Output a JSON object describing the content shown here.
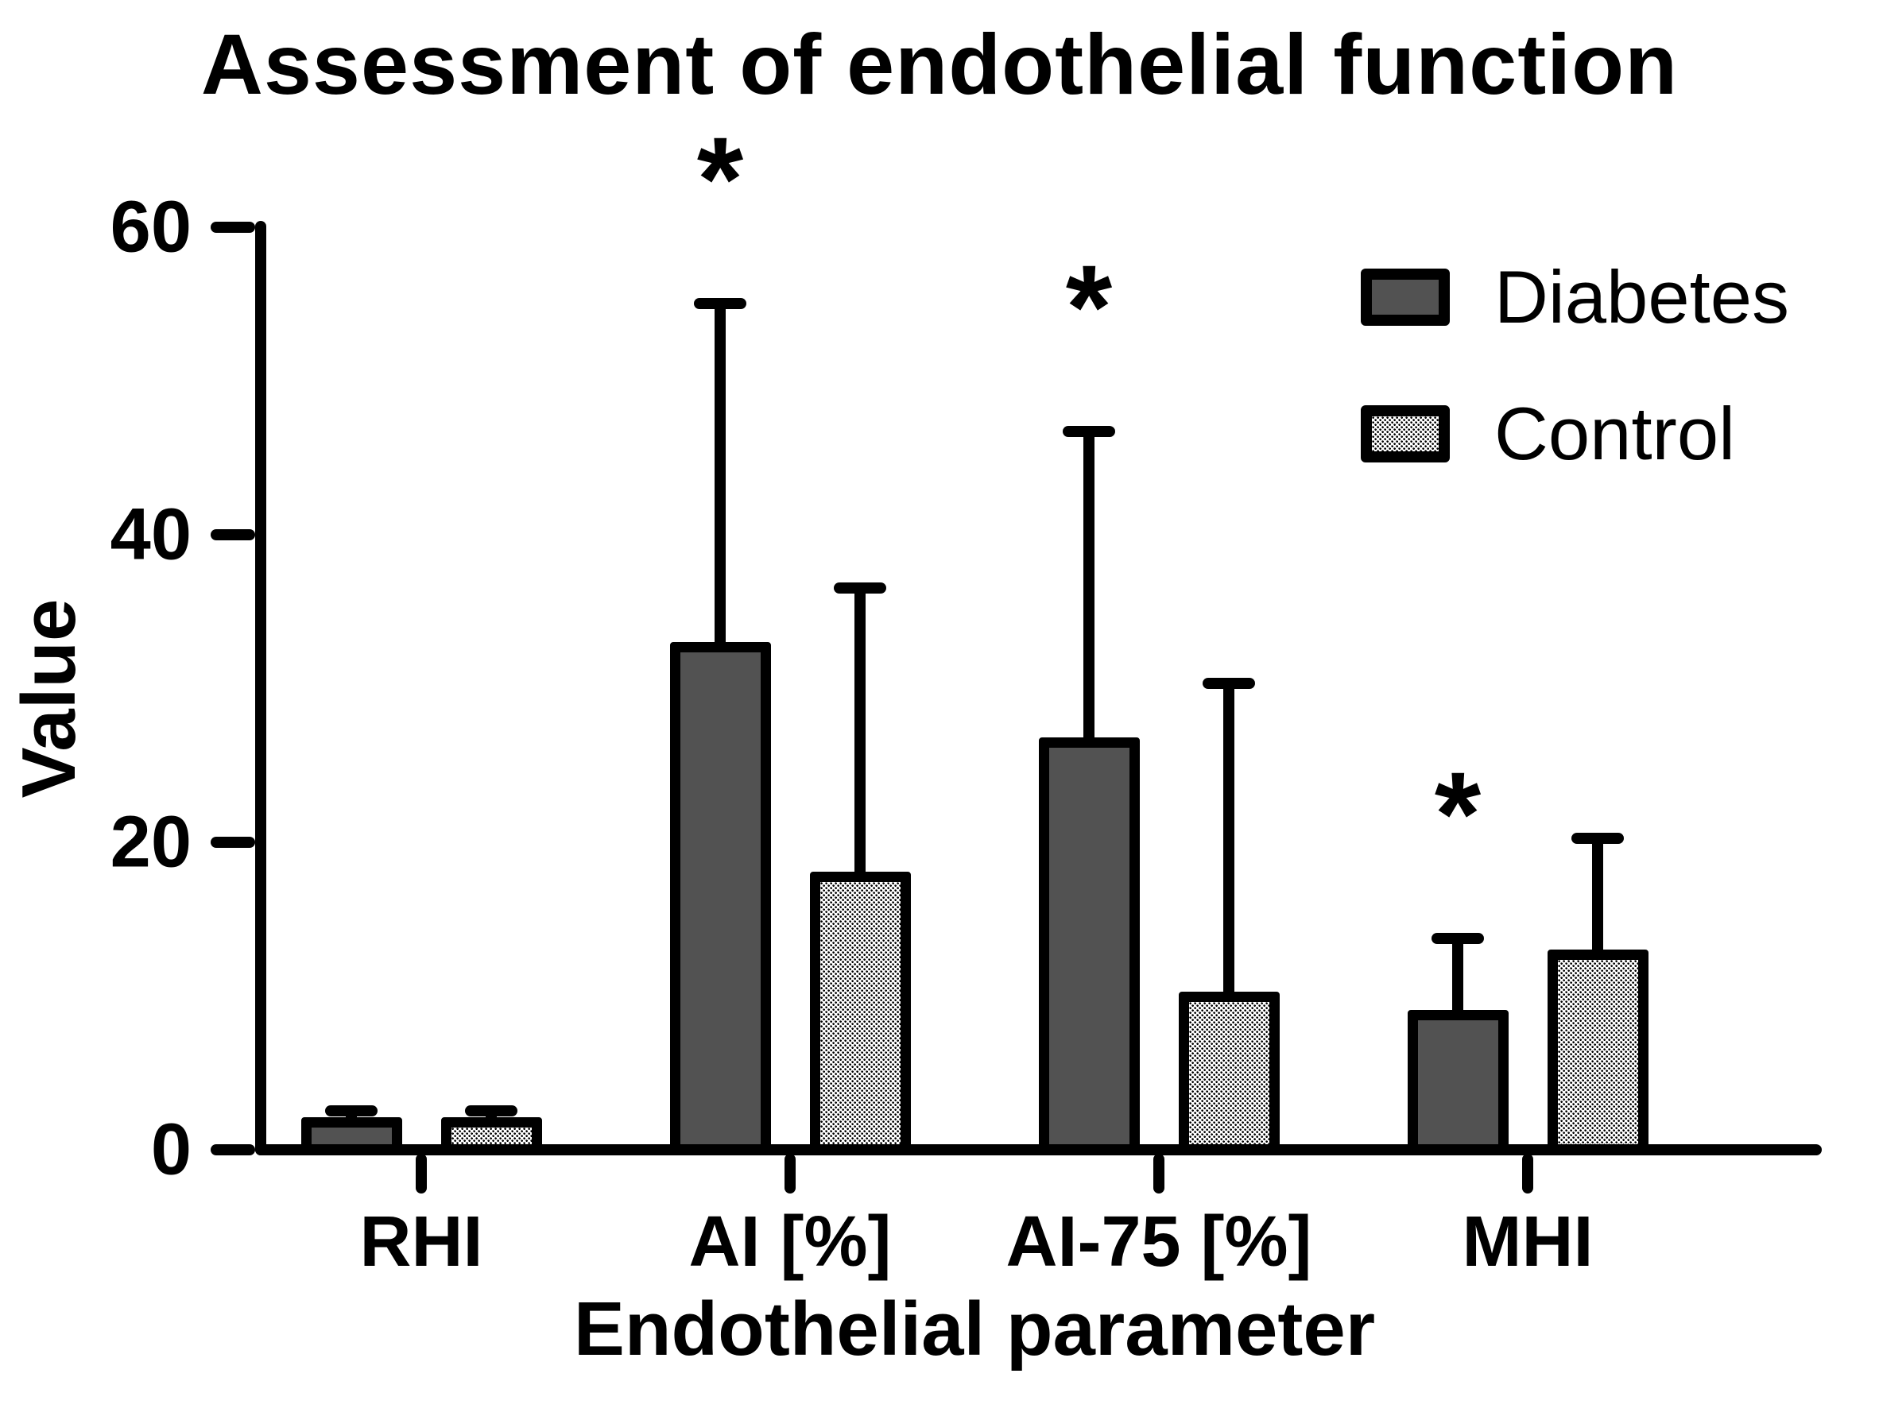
{
  "title": "Assessment of endothelial function",
  "y_axis": {
    "label": "Value",
    "ticks": [
      0,
      20,
      40,
      60
    ],
    "max": 60
  },
  "x_axis": {
    "label": "Endothelial parameter"
  },
  "legend": {
    "items": [
      {
        "label": "Diabetes",
        "style": "solid-dark"
      },
      {
        "label": "Control",
        "style": "stipple"
      }
    ],
    "position": "top-right"
  },
  "significance_marker": "*",
  "colors": {
    "diabetes_fill": "#525252",
    "control_fill_pattern": "black dots on white (stipple)",
    "outline": "#000000",
    "background": "#ffffff"
  },
  "chart_data": {
    "type": "bar",
    "categories": [
      "RHI",
      "AI [%]",
      "AI-75 [%]",
      "MHI"
    ],
    "series": [
      {
        "name": "Diabetes",
        "values": [
          2.1,
          33.0,
          26.8,
          9.1
        ],
        "errors_upper": [
          0.8,
          22.4,
          20.3,
          5.0
        ],
        "significant": [
          false,
          true,
          true,
          true
        ]
      },
      {
        "name": "Control",
        "values": [
          2.1,
          18.1,
          10.3,
          13.0
        ],
        "errors_upper": [
          0.8,
          18.8,
          20.4,
          7.6
        ],
        "significant": [
          false,
          false,
          false,
          false
        ]
      }
    ],
    "title": "Assessment of endothelial function",
    "xlabel": "Endothelial parameter",
    "ylabel": "Value",
    "ylim": [
      0,
      60
    ],
    "yticks": [
      0,
      20,
      40,
      60
    ],
    "grid": false,
    "legend_position": "top-right",
    "error_bars": "upper only, with caps",
    "annotations": "asterisk above Diabetes error bar for AI [%], AI-75 [%], MHI"
  }
}
